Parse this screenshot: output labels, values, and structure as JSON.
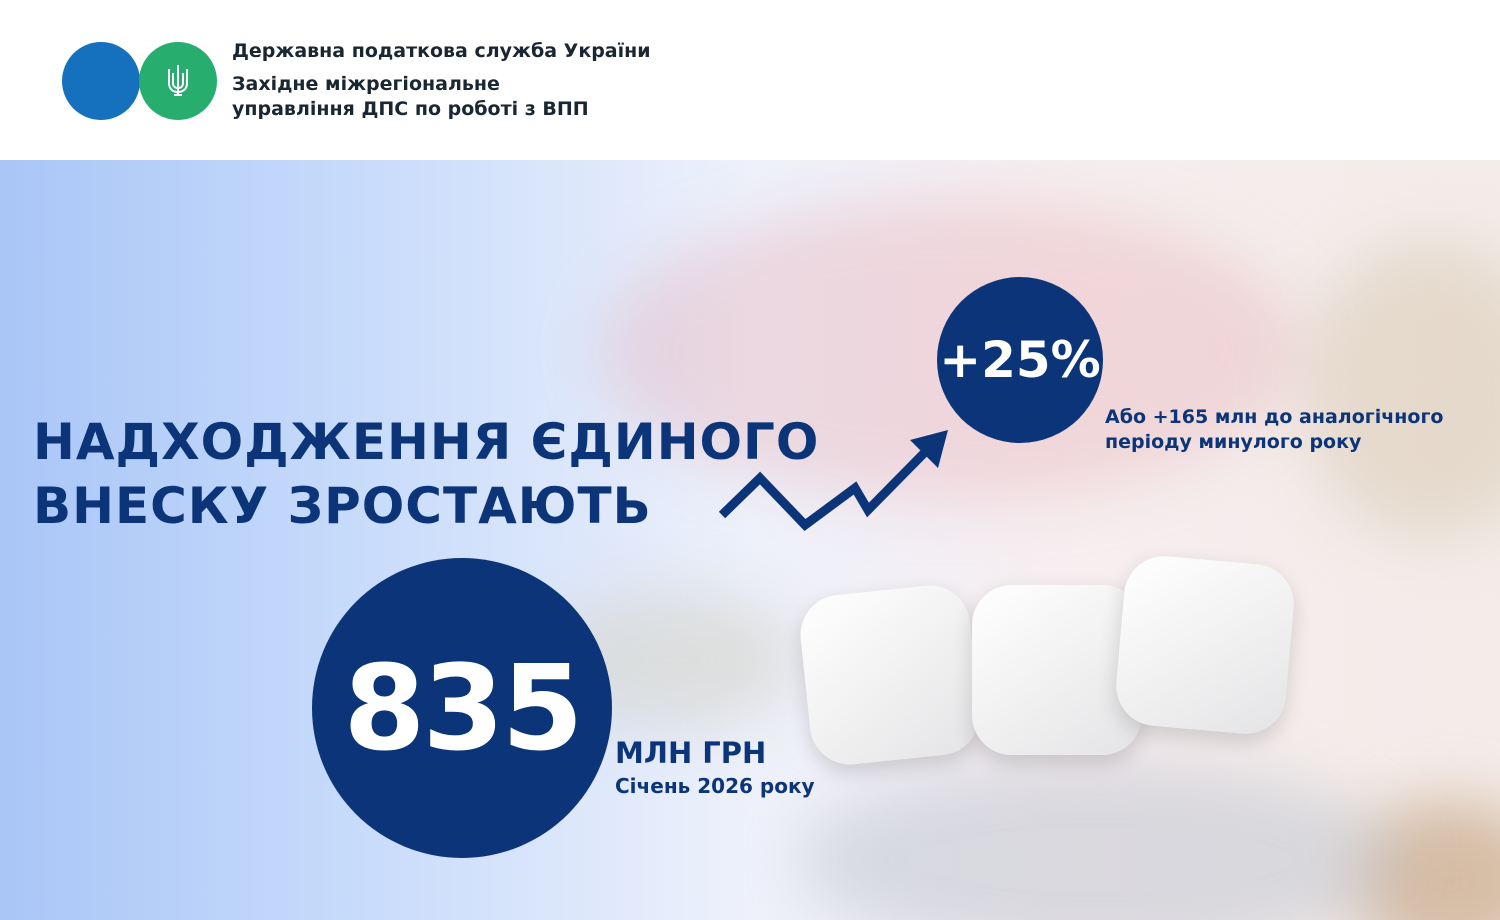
{
  "header": {
    "org_name": "Державна податкова служба України",
    "unit_line1": "Західне міжрегіональне",
    "unit_line2": "управління ДПС по роботі з ВПП",
    "logo_colors": {
      "blue": "#1570bd",
      "green": "#27ad6e"
    },
    "logo_icon": "trident-icon"
  },
  "main": {
    "title_line1": "НАДХОДЖЕННЯ ЄДИНОГО",
    "title_line2": "ВНЕСКУ ЗРОСТАЮТЬ",
    "growth_percent": "+25%",
    "growth_note_line1": "Або +165 млн до аналогічного",
    "growth_note_line2": "періоду минулого року",
    "amount": "835",
    "amount_unit": "МЛН ГРН",
    "period": "Січень 2026 року",
    "accent_color": "#0b3578"
  }
}
